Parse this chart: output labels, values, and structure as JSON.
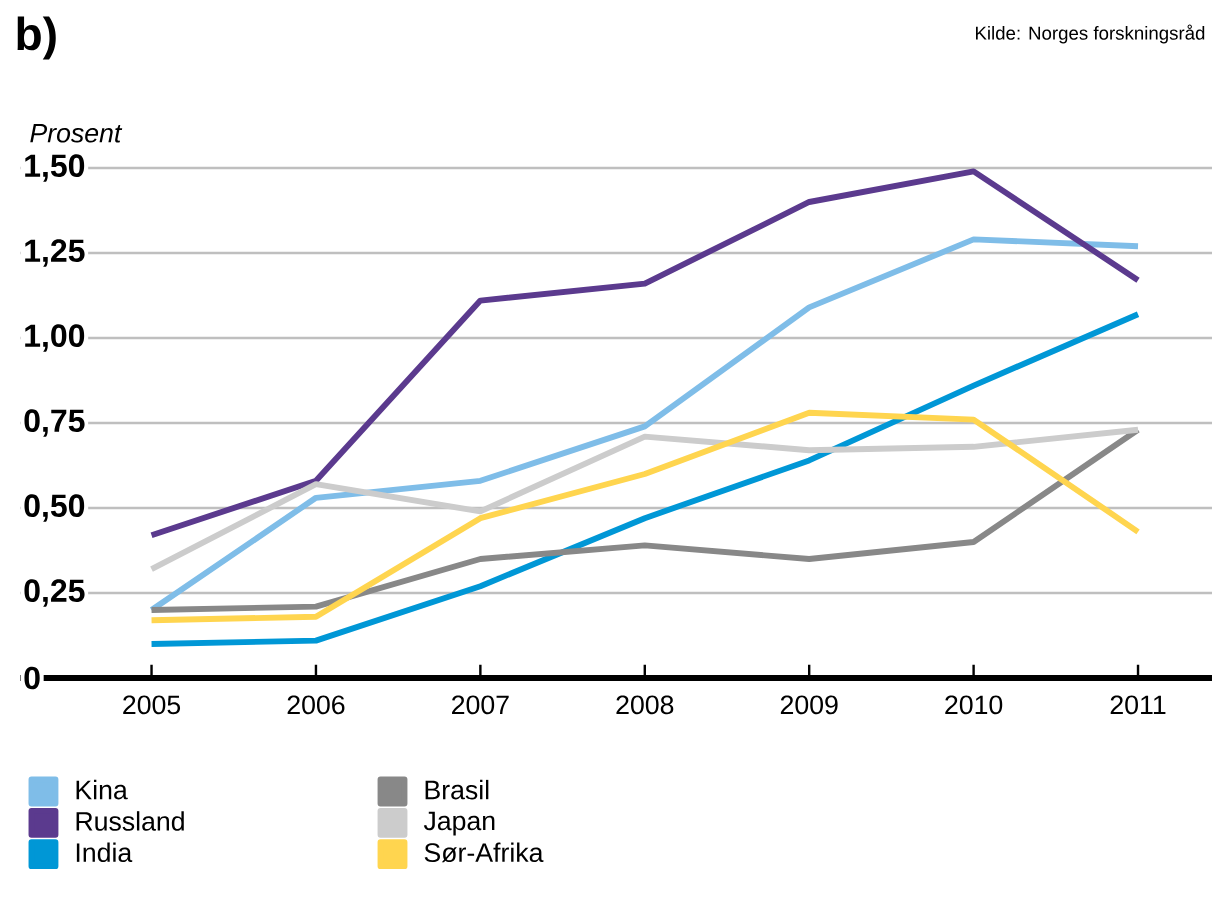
{
  "chart_data": {
    "type": "line",
    "title": "b)",
    "ylabel": "Prosent",
    "annotations": [
      "Kilde: Norges forskningsråd"
    ],
    "x": [
      2005,
      2006,
      2007,
      2008,
      2009,
      2010,
      2011
    ],
    "series": [
      {
        "name": "Kina",
        "color": "#7fbde8",
        "values": [
          0.2,
          0.53,
          0.58,
          0.74,
          1.09,
          1.29,
          1.27
        ]
      },
      {
        "name": "Russland",
        "color": "#5b3a8e",
        "values": [
          0.42,
          0.58,
          1.11,
          1.16,
          1.4,
          1.49,
          1.17
        ]
      },
      {
        "name": "India",
        "color": "#0097d6",
        "values": [
          0.1,
          0.11,
          0.27,
          0.47,
          0.64,
          0.86,
          1.07
        ]
      },
      {
        "name": "Brasil",
        "color": "#888888",
        "values": [
          0.2,
          0.21,
          0.35,
          0.39,
          0.35,
          0.4,
          0.73
        ]
      },
      {
        "name": "Japan",
        "color": "#cccccc",
        "values": [
          0.32,
          0.57,
          0.49,
          0.71,
          0.67,
          0.68,
          0.73
        ]
      },
      {
        "name": "Sør-Afrika",
        "color": "#ffd54f",
        "values": [
          0.17,
          0.18,
          0.47,
          0.6,
          0.78,
          0.76,
          0.43
        ]
      }
    ],
    "xlim": [
      2004.2,
      2011.45
    ],
    "xticks": [
      2005,
      2006,
      2007,
      2008,
      2009,
      2010,
      2011
    ],
    "ylim": [
      0,
      1.5
    ],
    "yticks": [
      0,
      {
        "value": 0.25,
        "label": "0,25"
      },
      {
        "value": 0.5,
        "label": "0,50"
      },
      {
        "value": 0.75,
        "label": "0,75"
      },
      {
        "value": 1.0,
        "label": "1,00"
      },
      {
        "value": 1.25,
        "label": "1,25"
      },
      {
        "value": 1.5,
        "label": "1,50"
      }
    ],
    "grid": "y",
    "legend": "bottom left",
    "line_style": "solid"
  }
}
